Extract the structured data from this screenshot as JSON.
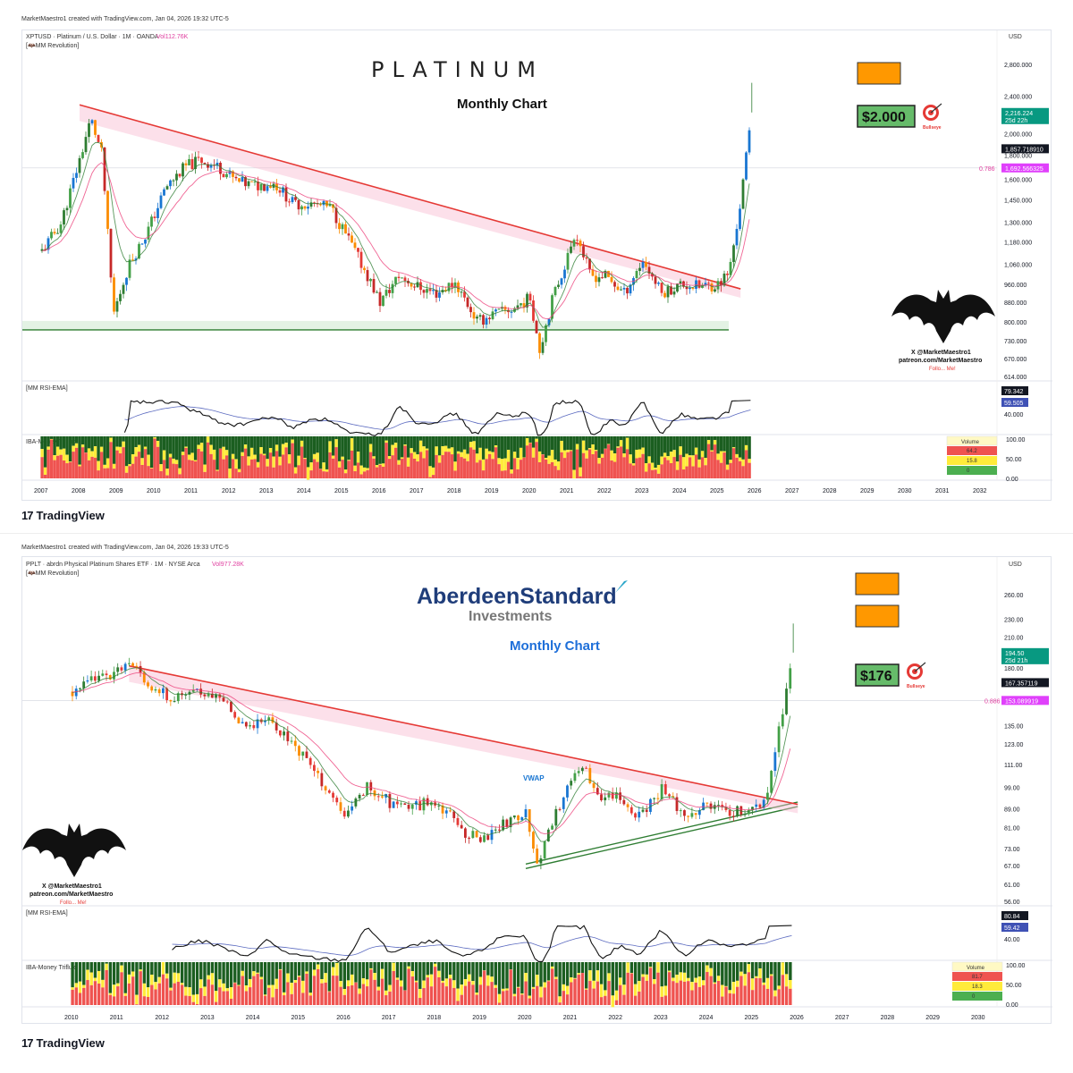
{
  "charts": [
    {
      "header": {
        "created": "MarketMaestro1 created with TradingView.com, Jan 04, 2026 19:32 UTC-5",
        "symbol": "XPTUSD · Platinum / U.S. Dollar · 1M · OANDA",
        "vol": "Vol112.76K",
        "indicator": "[🦇MM Revolution]",
        "currency": "USD"
      },
      "title": "PLATINUM",
      "subtitle": "Monthly Chart",
      "target_label": "$2.000",
      "bullseye_label": "Bullseye",
      "fib_label": "0.786",
      "price_ticks": [
        "2,800.000",
        "2,400.000",
        "2,000.000",
        "1,800.000",
        "1,600.000",
        "1,450.000",
        "1,300.000",
        "1,180.000",
        "1,060.000",
        "960.000",
        "880.000",
        "800.000",
        "730.000",
        "670.000",
        "614.000"
      ],
      "price_badges": [
        {
          "text": "2,216.224",
          "sub": "25d 22h",
          "color": "#089981"
        },
        {
          "text": "1,857.718910",
          "sub": "",
          "color": "#131722"
        },
        {
          "text": "1,692.566325",
          "sub": "",
          "color": "#e040fb"
        }
      ],
      "rsi": {
        "label": "[MM RSI-EMA]",
        "v1": "79.342",
        "v2": "59.505",
        "tick": "40.000"
      },
      "flux": {
        "label": "IBA-Money Triflux",
        "ticks": [
          "100.00",
          "50.00",
          "0.00"
        ],
        "legend_title": "Volume",
        "legend_values": [
          "64.2",
          "15.8",
          "0"
        ]
      },
      "watermark": {
        "line1": "X @MarketMaestro1",
        "line2": "patreon.com/MarketMaestro",
        "line3": "Follo... Me!"
      },
      "years": [
        "2007",
        "2008",
        "2009",
        "2010",
        "2011",
        "2012",
        "2013",
        "2014",
        "2015",
        "2016",
        "2017",
        "2018",
        "2019",
        "2020",
        "2021",
        "2022",
        "2023",
        "2024",
        "2025",
        "2026",
        "2027",
        "2028",
        "2029",
        "2030",
        "2031",
        "2032"
      ],
      "chart_data": {
        "type": "line",
        "title": "PLATINUM",
        "subtitle": "Monthly Chart",
        "y_scale": "log",
        "ylim": [
          614,
          2800
        ],
        "x": [
          2007.0,
          2007.5,
          2008.0,
          2008.3,
          2008.6,
          2008.9,
          2009.3,
          2009.8,
          2010.3,
          2010.8,
          2011.2,
          2011.7,
          2012.2,
          2012.7,
          2013.2,
          2013.7,
          2014.2,
          2014.7,
          2015.2,
          2015.7,
          2016.0,
          2016.5,
          2017.0,
          2017.5,
          2018.0,
          2018.6,
          2019.0,
          2019.5,
          2020.0,
          2020.25,
          2020.6,
          2021.0,
          2021.2,
          2021.6,
          2022.0,
          2022.5,
          2023.0,
          2023.5,
          2024.0,
          2024.5,
          2025.0,
          2025.3,
          2025.6,
          2025.9
        ],
        "close": [
          1130,
          1290,
          1760,
          2150,
          1800,
          830,
          1050,
          1240,
          1540,
          1700,
          1760,
          1700,
          1580,
          1550,
          1570,
          1420,
          1420,
          1390,
          1180,
          990,
          880,
          1000,
          950,
          920,
          970,
          800,
          830,
          850,
          900,
          700,
          900,
          1100,
          1250,
          1000,
          1000,
          920,
          1080,
          920,
          960,
          950,
          960,
          1020,
          1430,
          2216
        ],
        "resistance_line": {
          "from": [
            2008.0,
            2300
          ],
          "to": [
            2025.6,
            940
          ]
        },
        "support_line": {
          "level": 770
        },
        "target": 2000,
        "fib_0786": 1692.57,
        "ath_wick": 2560
      }
    },
    {
      "header": {
        "created": "MarketMaestro1 created with TradingView.com, Jan 04, 2026 19:33 UTC-5",
        "symbol": "PPLT · abrdn Physical Platinum Shares ETF · 1M · NYSE Arca",
        "vol": "Vol977.28K",
        "indicator": "[🦇MM Revolution]",
        "currency": "USD"
      },
      "logo_main": "AberdeenStandard",
      "logo_sub": "Investments",
      "subtitle": "Monthly Chart",
      "vwap_label": "VWAP",
      "target_label": "$176",
      "bullseye_label": "Bullseye",
      "fib_label": "0.886",
      "price_ticks": [
        "260.00",
        "230.00",
        "210.00",
        "180.00",
        "135.00",
        "123.00",
        "111.00",
        "99.00",
        "89.00",
        "81.00",
        "73.00",
        "67.00",
        "61.00",
        "56.00"
      ],
      "price_badges": [
        {
          "text": "194.50",
          "sub": "25d 21h",
          "color": "#089981"
        },
        {
          "text": "167.357119",
          "sub": "",
          "color": "#131722"
        },
        {
          "text": "153.089919",
          "sub": "",
          "color": "#e040fb"
        }
      ],
      "rsi": {
        "label": "[MM RSI-EMA]",
        "v1": "80.84",
        "v2": "59.42",
        "tick": "40.00"
      },
      "flux": {
        "label": "IBA-Money Triflux",
        "ticks": [
          "100.00",
          "50.00",
          "0.00"
        ],
        "legend_title": "Volume",
        "legend_values": [
          "81.7",
          "18.3",
          "0"
        ]
      },
      "watermark": {
        "line1": "X @MarketMaestro1",
        "line2": "patreon.com/MarketMaestro",
        "line3": "Follo... Me!"
      },
      "years": [
        "2010",
        "2011",
        "2012",
        "2013",
        "2014",
        "2015",
        "2016",
        "2017",
        "2018",
        "2019",
        "2020",
        "2021",
        "2022",
        "2023",
        "2024",
        "2025",
        "2026",
        "2027",
        "2028",
        "2029",
        "2030"
      ],
      "chart_data": {
        "type": "line",
        "subtitle": "Monthly Chart",
        "y_scale": "log",
        "ylim": [
          56,
          260
        ],
        "x": [
          2010.0,
          2010.5,
          2011.0,
          2011.4,
          2011.8,
          2012.3,
          2012.8,
          2013.3,
          2013.8,
          2014.3,
          2014.8,
          2015.2,
          2015.7,
          2016.0,
          2016.5,
          2017.0,
          2017.5,
          2018.0,
          2018.6,
          2019.0,
          2019.5,
          2020.0,
          2020.25,
          2020.6,
          2021.0,
          2021.2,
          2021.6,
          2022.0,
          2022.5,
          2023.0,
          2023.5,
          2024.0,
          2024.5,
          2025.0,
          2025.3,
          2025.6,
          2025.9
        ],
        "close": [
          160,
          170,
          178,
          182,
          160,
          155,
          160,
          155,
          135,
          140,
          125,
          112,
          95,
          85,
          100,
          92,
          90,
          93,
          80,
          76,
          82,
          88,
          68,
          84,
          102,
          112,
          95,
          95,
          86,
          98,
          86,
          90,
          88,
          88,
          93,
          135,
          194.5
        ],
        "resistance_line": {
          "from": [
            2011.25,
            182
          ],
          "to": [
            2026.0,
            91
          ]
        },
        "support_channel": {
          "from": [
            2020.0,
            66
          ],
          "to": [
            2026.0,
            90
          ]
        },
        "target": 176,
        "fib_0886": 153.09,
        "ath_wick": 225
      }
    }
  ]
}
